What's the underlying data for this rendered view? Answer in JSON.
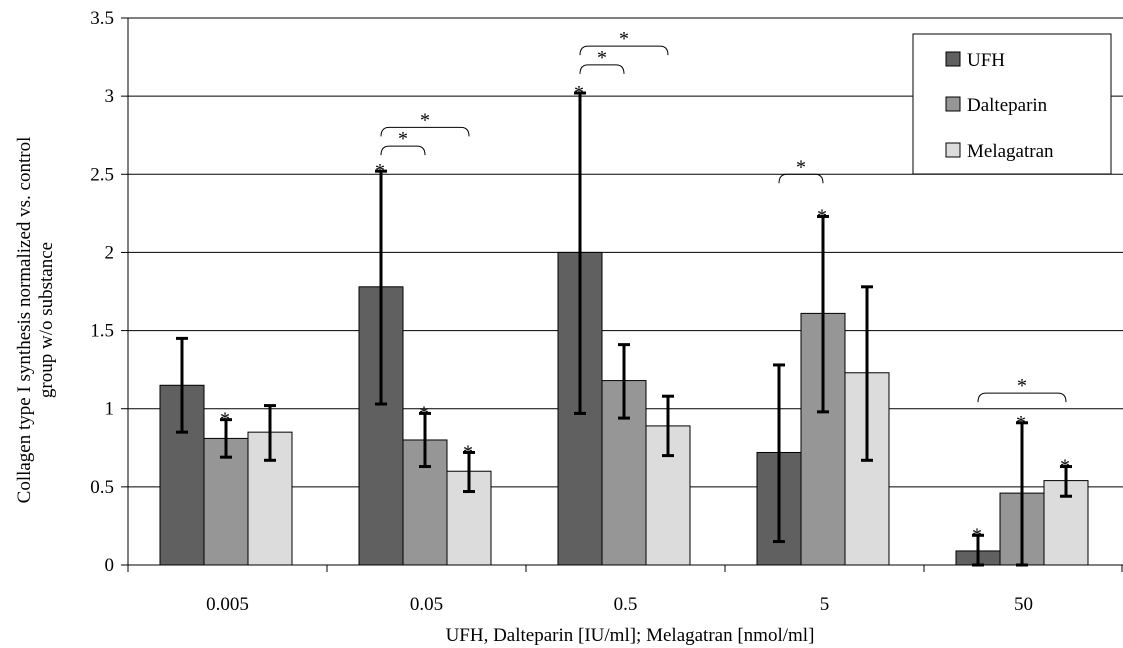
{
  "chart_data": {
    "type": "bar",
    "title": "",
    "xlabel": "UFH, Dalteparin [IU/ml]; Melagatran [nmol/ml]",
    "ylabel_line1": "Collagen type I synthesis normalized vs.  control",
    "ylabel_line2": "group w/o substance",
    "categories": [
      "0.005",
      "0.05",
      "0.5",
      "5",
      "50"
    ],
    "ylim": [
      0,
      3.5
    ],
    "yticks": [
      "0",
      "0.5",
      "1",
      "1.5",
      "2",
      "2.5",
      "3",
      "3.5"
    ],
    "grid": true,
    "legend_position": "top-right",
    "series": [
      {
        "name": "UFH",
        "color": "#606060",
        "values": [
          1.15,
          1.78,
          2.0,
          0.72,
          0.09
        ],
        "err_low": [
          0.85,
          1.03,
          0.97,
          0.15,
          0.0
        ],
        "err_high": [
          1.45,
          2.52,
          3.02,
          1.28,
          0.19
        ],
        "significant": [
          false,
          true,
          true,
          false,
          true
        ]
      },
      {
        "name": "Dalteparin",
        "color": "#969696",
        "values": [
          0.81,
          0.8,
          1.18,
          1.61,
          0.46
        ],
        "err_low": [
          0.69,
          0.63,
          0.94,
          0.98,
          0.0
        ],
        "err_high": [
          0.93,
          0.97,
          1.41,
          2.23,
          0.91
        ],
        "significant": [
          true,
          true,
          false,
          true,
          true
        ]
      },
      {
        "name": "Melagatran",
        "color": "#dcdcdc",
        "values": [
          0.85,
          0.6,
          0.89,
          1.23,
          0.54
        ],
        "err_low": [
          0.67,
          0.47,
          0.7,
          0.67,
          0.44
        ],
        "err_high": [
          1.02,
          0.72,
          1.08,
          1.78,
          0.63
        ],
        "significant": [
          false,
          true,
          false,
          false,
          true
        ]
      }
    ],
    "significance_brackets": [
      {
        "category": 1,
        "from_series": 0,
        "to_series": 1,
        "y": 2.68,
        "label": "*"
      },
      {
        "category": 1,
        "from_series": 0,
        "to_series": 2,
        "y": 2.8,
        "label": "*"
      },
      {
        "category": 2,
        "from_series": 0,
        "to_series": 1,
        "y": 3.2,
        "label": "*"
      },
      {
        "category": 2,
        "from_series": 0,
        "to_series": 2,
        "y": 3.32,
        "label": "*"
      },
      {
        "category": 3,
        "from_series": 0,
        "to_series": 1,
        "y": 2.5,
        "label": "*"
      },
      {
        "category": 4,
        "from_series": 0,
        "to_series": 2,
        "y": 1.1,
        "label": "*"
      }
    ]
  }
}
